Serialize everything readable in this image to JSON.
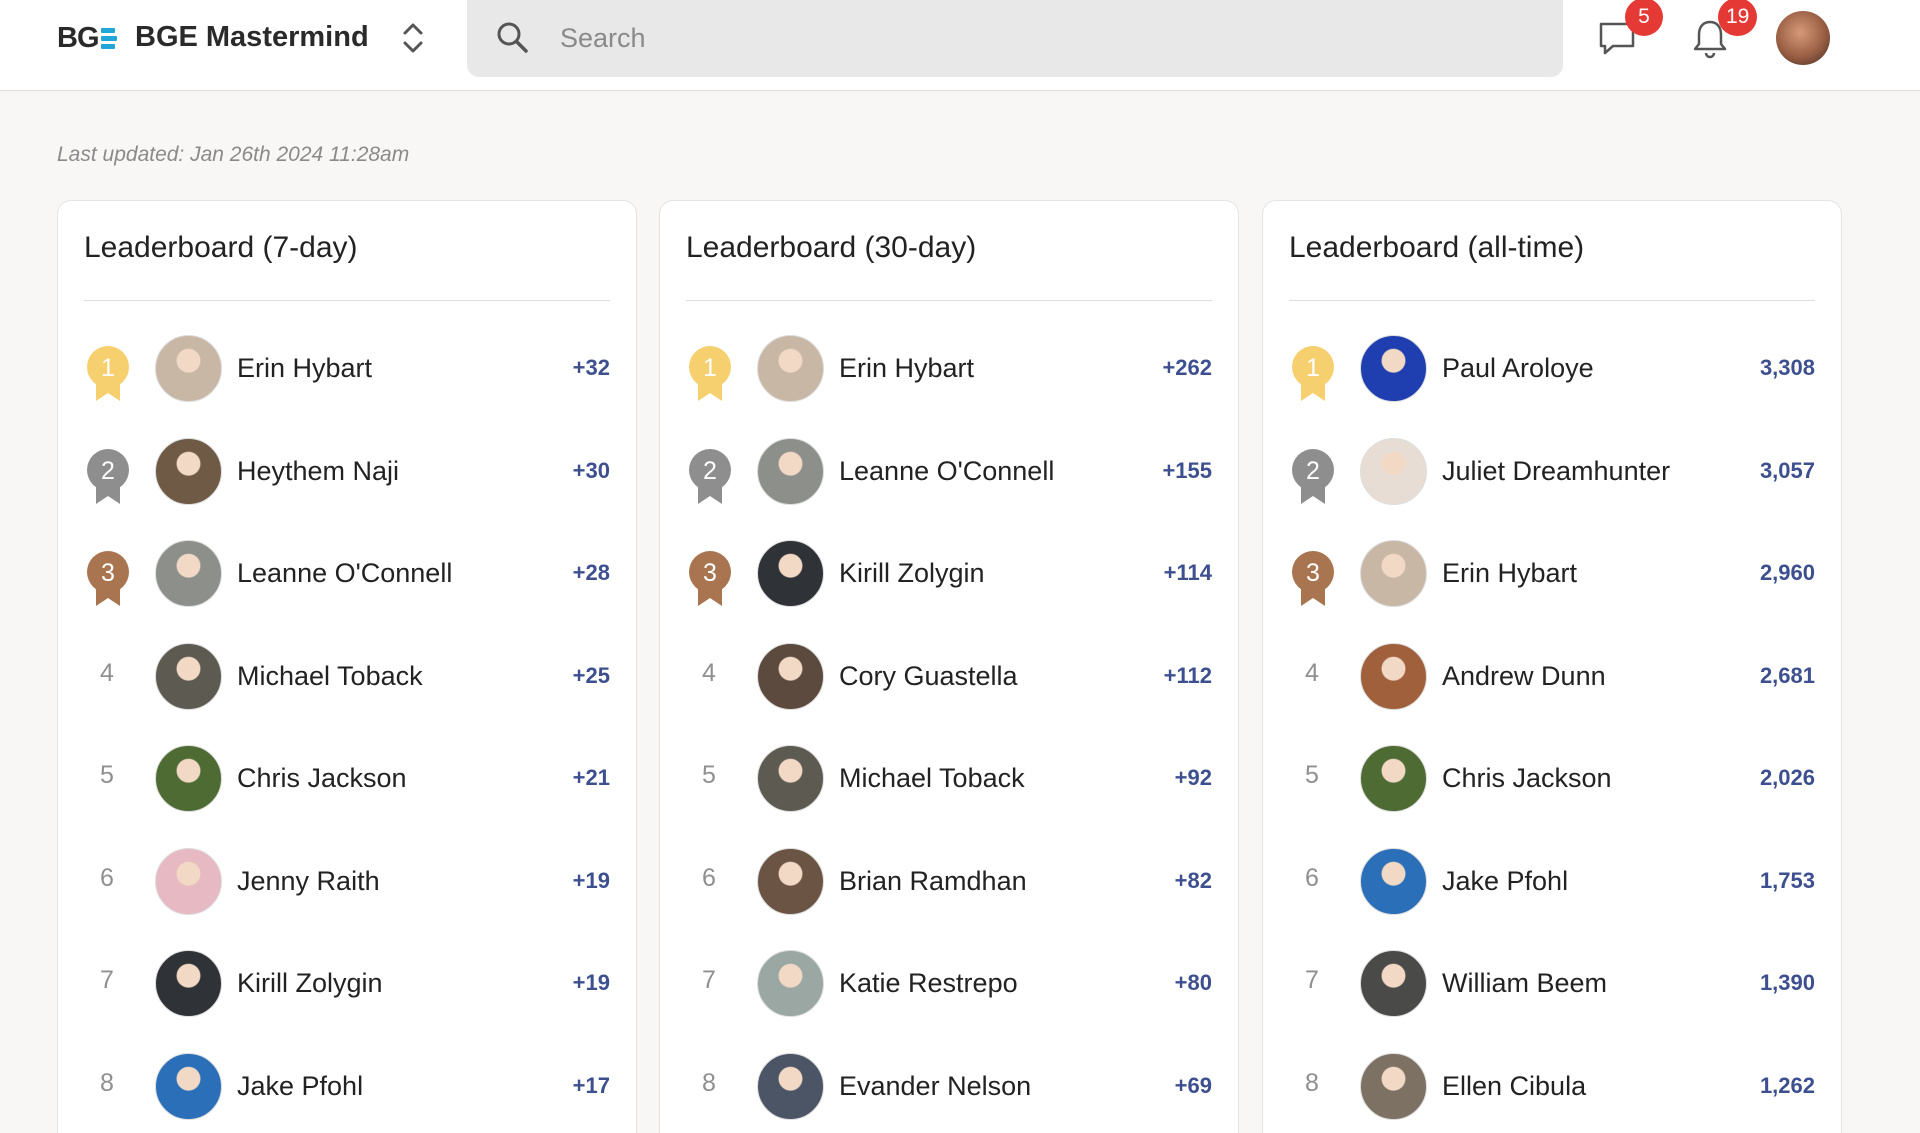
{
  "header": {
    "logo_text": "BG",
    "group_name": "BGE Mastermind",
    "search_placeholder": "Search",
    "chat_badge": "5",
    "notification_badge": "19"
  },
  "last_updated": "Last updated: Jan 26th 2024 11:28am",
  "colors": {
    "gold": "#f6cf6f",
    "silver": "#8e8e8e",
    "bronze": "#a87550",
    "points": "#3d4f8f",
    "badge": "#e53935",
    "logo_accent": "#22a6d8"
  },
  "leaderboards": [
    {
      "title": "Leaderboard (7-day)",
      "rows": [
        {
          "rank": "1",
          "name": "Erin Hybart",
          "points": "+32",
          "avatar_color": "#c9b7a6"
        },
        {
          "rank": "2",
          "name": "Heythem Naji",
          "points": "+30",
          "avatar_color": "#6e5a45"
        },
        {
          "rank": "3",
          "name": "Leanne O'Connell",
          "points": "+28",
          "avatar_color": "#8d8f8a"
        },
        {
          "rank": "4",
          "name": "Michael Toback",
          "points": "+25",
          "avatar_color": "#5d5a52"
        },
        {
          "rank": "5",
          "name": "Chris Jackson",
          "points": "+21",
          "avatar_color": "#4f6b34"
        },
        {
          "rank": "6",
          "name": "Jenny Raith",
          "points": "+19",
          "avatar_color": "#e7b9c2"
        },
        {
          "rank": "7",
          "name": "Kirill Zolygin",
          "points": "+19",
          "avatar_color": "#2f3236"
        },
        {
          "rank": "8",
          "name": "Jake Pfohl",
          "points": "+17",
          "avatar_color": "#2a6fb8"
        }
      ]
    },
    {
      "title": "Leaderboard (30-day)",
      "rows": [
        {
          "rank": "1",
          "name": "Erin Hybart",
          "points": "+262",
          "avatar_color": "#c9b7a6"
        },
        {
          "rank": "2",
          "name": "Leanne O'Connell",
          "points": "+155",
          "avatar_color": "#8d8f8a"
        },
        {
          "rank": "3",
          "name": "Kirill Zolygin",
          "points": "+114",
          "avatar_color": "#2f3236"
        },
        {
          "rank": "4",
          "name": "Cory Guastella",
          "points": "+112",
          "avatar_color": "#5b4a3d"
        },
        {
          "rank": "5",
          "name": "Michael Toback",
          "points": "+92",
          "avatar_color": "#5d5a52"
        },
        {
          "rank": "6",
          "name": "Brian Ramdhan",
          "points": "+82",
          "avatar_color": "#6b5444"
        },
        {
          "rank": "7",
          "name": "Katie Restrepo",
          "points": "+80",
          "avatar_color": "#9aa7a3"
        },
        {
          "rank": "8",
          "name": "Evander Nelson",
          "points": "+69",
          "avatar_color": "#4c5566"
        }
      ]
    },
    {
      "title": "Leaderboard (all-time)",
      "rows": [
        {
          "rank": "1",
          "name": "Paul Aroloye",
          "points": "3,308",
          "avatar_color": "#1f3fb0"
        },
        {
          "rank": "2",
          "name": "Juliet Dreamhunter",
          "points": "3,057",
          "avatar_color": "#e8ddd4"
        },
        {
          "rank": "3",
          "name": "Erin Hybart",
          "points": "2,960",
          "avatar_color": "#c9b7a6"
        },
        {
          "rank": "4",
          "name": "Andrew Dunn",
          "points": "2,681",
          "avatar_color": "#a0603c"
        },
        {
          "rank": "5",
          "name": "Chris Jackson",
          "points": "2,026",
          "avatar_color": "#4f6b34"
        },
        {
          "rank": "6",
          "name": "Jake Pfohl",
          "points": "1,753",
          "avatar_color": "#2a6fb8"
        },
        {
          "rank": "7",
          "name": "William Beem",
          "points": "1,390",
          "avatar_color": "#4a4a48"
        },
        {
          "rank": "8",
          "name": "Ellen Cibula",
          "points": "1,262",
          "avatar_color": "#7c7162"
        }
      ]
    }
  ]
}
